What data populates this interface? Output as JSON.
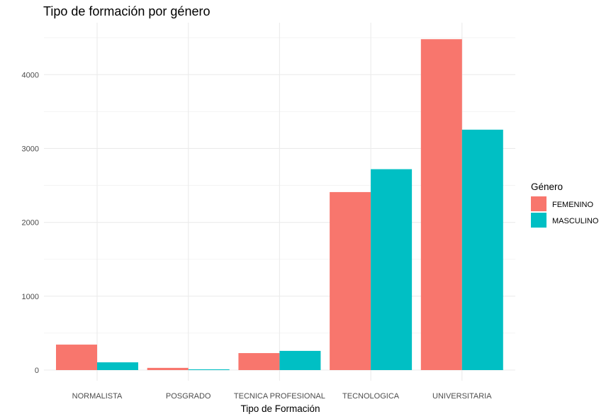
{
  "chart_data": {
    "type": "bar",
    "title": "Tipo de formación por género",
    "xlabel": "Tipo de Formación",
    "ylabel": "",
    "categories": [
      "NORMALISTA",
      "POSGRADO",
      "TECNICA PROFESIONAL",
      "TECNOLOGICA",
      "UNIVERSITARIA"
    ],
    "series": [
      {
        "name": "FEMENINO",
        "color": "#F8766D",
        "values": [
          345,
          30,
          230,
          2410,
          4480
        ]
      },
      {
        "name": "MASCULINO",
        "color": "#00BFC4",
        "values": [
          105,
          10,
          260,
          2720,
          3255
        ]
      }
    ],
    "ylim": [
      0,
      4750
    ],
    "yticks": [
      0,
      1000,
      2000,
      3000,
      4000
    ],
    "grid": true,
    "legend": {
      "title": "Género",
      "position": "right"
    }
  }
}
